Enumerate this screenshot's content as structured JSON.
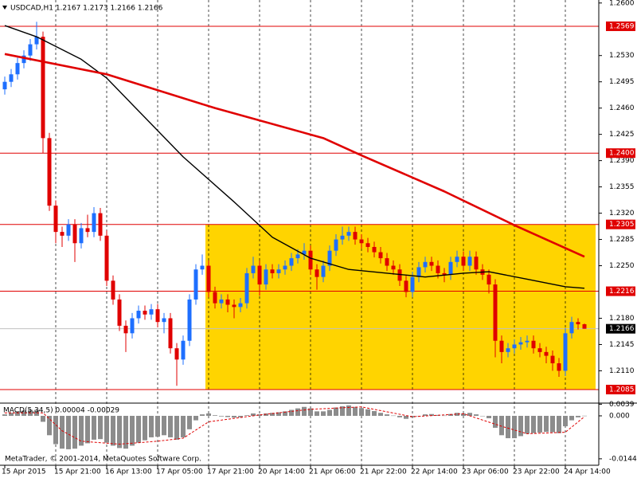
{
  "chart_data": {
    "type": "candlestick",
    "title": "USDCAD,H1  1.2167 1.2173 1.2166 1.2166",
    "watermark": "MetaTrader, © 2001-2014, MetaQuotes Software Corp.",
    "categories": [
      "15 Apr 2015",
      null,
      null,
      null,
      null,
      null,
      null,
      null,
      "15 Apr 21:00",
      null,
      null,
      null,
      null,
      null,
      null,
      null,
      "16 Apr 13:00",
      null,
      null,
      null,
      null,
      null,
      null,
      null,
      "17 Apr 05:00",
      null,
      null,
      null,
      null,
      null,
      null,
      null,
      "17 Apr 21:00",
      null,
      null,
      null,
      null,
      null,
      null,
      null,
      "20 Apr 14:00",
      null,
      null,
      null,
      null,
      null,
      null,
      null,
      "21 Apr 06:00",
      null,
      null,
      null,
      null,
      null,
      null,
      null,
      "21 Apr 22:00",
      null,
      null,
      null,
      null,
      null,
      null,
      null,
      "22 Apr 14:00",
      null,
      null,
      null,
      null,
      null,
      null,
      null,
      "23 Apr 06:00",
      null,
      null,
      null,
      null,
      null,
      null,
      null,
      "23 Apr 22:00",
      null,
      null,
      null,
      null,
      null,
      null,
      null,
      "24 Apr 14:00",
      null,
      null,
      null
    ],
    "open": [
      1.2485,
      1.2495,
      1.2505,
      1.252,
      1.253,
      1.2545,
      1.2555,
      1.242,
      1.233,
      1.2295,
      1.229,
      1.2305,
      1.228,
      1.23,
      1.2295,
      1.232,
      1.229,
      1.223,
      1.2205,
      1.217,
      1.216,
      1.218,
      1.219,
      1.2185,
      1.2192,
      1.2175,
      1.218,
      1.214,
      1.2125,
      1.215,
      1.2205,
      1.2245,
      1.225,
      1.2215,
      1.22,
      1.2205,
      1.2198,
      1.2195,
      1.22,
      1.224,
      1.225,
      1.2225,
      1.2245,
      1.224,
      1.2245,
      1.225,
      1.226,
      1.2265,
      1.227,
      1.2245,
      1.2235,
      1.225,
      1.227,
      1.2285,
      1.229,
      1.2295,
      1.2285,
      1.228,
      1.2275,
      1.2268,
      1.226,
      1.225,
      1.2245,
      1.223,
      1.2215,
      1.2235,
      1.2248,
      1.2255,
      1.225,
      1.224,
      1.2238,
      1.2255,
      1.2262,
      1.225,
      1.2262,
      1.2245,
      1.2238,
      1.2225,
      1.215,
      1.2135,
      1.214,
      1.2145,
      1.2148,
      1.215,
      1.214,
      1.2135,
      1.213,
      1.212,
      1.211,
      1.216,
      1.2175,
      1.2172
    ],
    "high": [
      1.2502,
      1.2512,
      1.2527,
      1.2537,
      1.2552,
      1.2575,
      1.2562,
      1.2427,
      1.2337,
      1.2302,
      1.2312,
      1.2312,
      1.2307,
      1.2318,
      1.2328,
      1.2327,
      1.2297,
      1.2237,
      1.2212,
      1.2177,
      1.2187,
      1.2197,
      1.2197,
      1.2199,
      1.2199,
      1.2187,
      1.2187,
      1.2147,
      1.2157,
      1.2212,
      1.2252,
      1.2265,
      1.2257,
      1.2222,
      1.2212,
      1.2212,
      1.2205,
      1.2207,
      1.2247,
      1.2262,
      1.2257,
      1.2252,
      1.2252,
      1.2252,
      1.2257,
      1.2267,
      1.2272,
      1.228,
      1.2277,
      1.2252,
      1.2257,
      1.2277,
      1.2292,
      1.2302,
      1.2302,
      1.2302,
      1.2292,
      1.2287,
      1.2282,
      1.2275,
      1.2267,
      1.2257,
      1.2252,
      1.2237,
      1.2242,
      1.2255,
      1.2262,
      1.2262,
      1.2257,
      1.2247,
      1.2262,
      1.227,
      1.2269,
      1.227,
      1.2269,
      1.2252,
      1.2245,
      1.2232,
      1.2157,
      1.2147,
      1.2152,
      1.2155,
      1.2157,
      1.2157,
      1.2147,
      1.2142,
      1.2137,
      1.2127,
      1.2167,
      1.2182,
      1.218,
      1.2173
    ],
    "low": [
      1.2478,
      1.2488,
      1.2498,
      1.2513,
      1.2523,
      1.2538,
      1.24,
      1.2323,
      1.228,
      1.2275,
      1.2283,
      1.2255,
      1.2273,
      1.2288,
      1.2288,
      1.2283,
      1.2223,
      1.2198,
      1.2163,
      1.2135,
      1.2153,
      1.2173,
      1.2178,
      1.2178,
      1.2168,
      1.216,
      1.2133,
      1.209,
      1.2118,
      1.2143,
      1.2198,
      1.2238,
      1.2208,
      1.2193,
      1.2193,
      1.2188,
      1.218,
      1.2188,
      1.2193,
      1.2233,
      1.221,
      1.2218,
      1.2233,
      1.2233,
      1.2238,
      1.2243,
      1.2253,
      1.2258,
      1.2238,
      1.2218,
      1.2228,
      1.2243,
      1.2263,
      1.2278,
      1.2283,
      1.2278,
      1.2273,
      1.2268,
      1.2261,
      1.2253,
      1.2243,
      1.2238,
      1.2223,
      1.2208,
      1.2208,
      1.2228,
      1.2241,
      1.2243,
      1.2233,
      1.2228,
      1.2231,
      1.2248,
      1.2243,
      1.2243,
      1.2238,
      1.2231,
      1.2213,
      1.2128,
      1.212,
      1.2128,
      1.2133,
      1.2138,
      1.2141,
      1.2133,
      1.2128,
      1.212,
      1.211,
      1.2102,
      1.2103,
      1.2153,
      1.2165,
      1.2166
    ],
    "close": [
      1.2495,
      1.2505,
      1.252,
      1.253,
      1.2545,
      1.2555,
      1.242,
      1.233,
      1.2295,
      1.229,
      1.2305,
      1.228,
      1.23,
      1.2295,
      1.232,
      1.229,
      1.223,
      1.2205,
      1.217,
      1.216,
      1.218,
      1.219,
      1.2185,
      1.2192,
      1.2175,
      1.218,
      1.214,
      1.2125,
      1.215,
      1.2205,
      1.2245,
      1.225,
      1.2215,
      1.22,
      1.2205,
      1.2198,
      1.2195,
      1.22,
      1.224,
      1.225,
      1.2225,
      1.2245,
      1.224,
      1.2245,
      1.225,
      1.226,
      1.2265,
      1.227,
      1.2245,
      1.2235,
      1.225,
      1.227,
      1.2285,
      1.229,
      1.2295,
      1.2285,
      1.228,
      1.2275,
      1.2268,
      1.226,
      1.225,
      1.2245,
      1.223,
      1.2215,
      1.2235,
      1.2248,
      1.2255,
      1.225,
      1.224,
      1.2238,
      1.2255,
      1.2262,
      1.225,
      1.2262,
      1.2245,
      1.2238,
      1.2225,
      1.215,
      1.2135,
      1.214,
      1.2145,
      1.2148,
      1.215,
      1.214,
      1.2135,
      1.213,
      1.212,
      1.211,
      1.216,
      1.2175,
      1.2172,
      1.2166
    ],
    "up_color": "#1e6fff",
    "down_color": "#e00000",
    "ylim": [
      1.2068,
      1.2604
    ],
    "yticks": [
      {
        "value": 1.26,
        "label": "1.2600"
      },
      {
        "value": 1.253,
        "label": "1.2530"
      },
      1.2495,
      {
        "value": 1.246,
        "label": "1.2460"
      },
      1.2425,
      {
        "value": 1.239,
        "label": "1.2390"
      },
      1.2355,
      {
        "value": 1.232,
        "label": "1.2320"
      },
      1.2285,
      {
        "value": 1.225,
        "label": "1.2250"
      },
      {
        "value": 1.218,
        "label": "1.2180"
      },
      1.2145,
      {
        "value": 1.211,
        "label": "1.2110"
      }
    ],
    "grid": true,
    "levels": {
      "color": "#e00000",
      "values": [
        1.2569,
        1.24,
        1.2305,
        1.2216,
        1.2085
      ],
      "value_labels": [
        "1.2569",
        "1.2400",
        "1.2305",
        "1.2216",
        "1.2085"
      ]
    },
    "bid": 1.2166,
    "zone": {
      "color": "#ffd400",
      "start_index": 32,
      "ylim": [
        1.2085,
        1.2305
      ]
    },
    "moving_averages": [
      {
        "color": "#000000",
        "x": [
          0,
          5,
          12,
          16,
          20,
          28,
          36,
          42,
          48,
          54,
          60,
          66,
          72,
          76,
          82,
          88,
          91
        ],
        "values": [
          1.257,
          1.2555,
          1.2525,
          1.25,
          1.2465,
          1.2395,
          1.2335,
          1.2288,
          1.226,
          1.2245,
          1.224,
          1.2235,
          1.224,
          1.2242,
          1.2232,
          1.2222,
          1.222
        ]
      },
      {
        "color": "#e00000",
        "x": [
          0,
          16,
          33,
          50,
          56,
          69,
          80,
          91
        ],
        "values": [
          1.2532,
          1.2505,
          1.246,
          1.242,
          1.2397,
          1.2349,
          1.2304,
          1.2262
        ]
      }
    ],
    "macd": {
      "type": "bar",
      "title": "MACD(5,34,5) 0.00004 -0.00029",
      "color": "#8c8c8c",
      "values": [
        0.0005,
        0.001,
        0.0015,
        0.0018,
        0.002,
        0.002,
        -0.002,
        -0.0065,
        -0.0095,
        -0.011,
        -0.0112,
        -0.011,
        -0.01,
        -0.0092,
        -0.008,
        -0.0078,
        -0.009,
        -0.01,
        -0.0108,
        -0.011,
        -0.01,
        -0.009,
        -0.0082,
        -0.0072,
        -0.007,
        -0.0065,
        -0.0072,
        -0.008,
        -0.0072,
        -0.0045,
        -0.0015,
        0.0005,
        0.0008,
        0.0002,
        -0.0002,
        -0.0004,
        -0.0006,
        -0.0005,
        0.0002,
        0.0008,
        0.0005,
        0.0008,
        0.001,
        0.0012,
        0.0015,
        0.002,
        0.0025,
        0.003,
        0.0025,
        0.0015,
        0.0015,
        0.002,
        0.0028,
        0.0032,
        0.0035,
        0.003,
        0.0026,
        0.0022,
        0.0016,
        0.001,
        0.0005,
        0.0001,
        -0.0005,
        -0.001,
        -0.0005,
        0,
        0.0005,
        0.0006,
        0.0003,
        0.0001,
        0.0006,
        0.001,
        0.0008,
        0.001,
        0.0005,
        0,
        -0.0008,
        -0.004,
        -0.0065,
        -0.0075,
        -0.0075,
        -0.0068,
        -0.006,
        -0.0058,
        -0.0056,
        -0.0054,
        -0.0055,
        -0.0058,
        -0.0035,
        -0.0015,
        -0.0005,
        4e-05
      ],
      "signal": {
        "color": "#e00000",
        "x": [
          0,
          6,
          9,
          12,
          18,
          24,
          28,
          32,
          40,
          48,
          56,
          64,
          72,
          78,
          82,
          88,
          91
        ],
        "values": [
          0.001,
          0.001,
          -0.005,
          -0.0085,
          -0.0095,
          -0.0085,
          -0.0075,
          -0.002,
          0.0003,
          0.0022,
          0.003,
          -0.0003,
          0.0007,
          -0.0035,
          -0.006,
          -0.0055,
          -0.00029
        ]
      },
      "ylim": [
        -0.0163,
        0.004
      ],
      "yticks": [
        0.0039,
        {
          "value": 0,
          "label": "0.000"
        },
        -0.0144
      ]
    }
  }
}
